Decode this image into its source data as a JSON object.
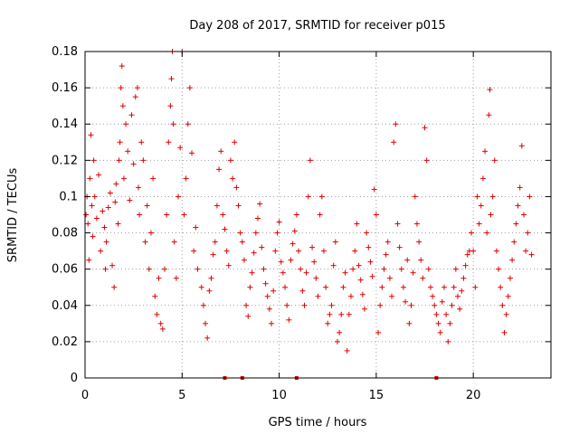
{
  "chart_data": {
    "type": "scatter",
    "title": "Day 208 of 2017, SRMTID for receiver p015",
    "xlabel": "GPS time / hours",
    "ylabel": "SRMTID / TECUs",
    "xlim": [
      0,
      24
    ],
    "ylim": [
      0,
      0.18
    ],
    "xticks": [
      0,
      5,
      10,
      15,
      20
    ],
    "xtick_labels": [
      "0",
      "5",
      "10",
      "15",
      "20"
    ],
    "yticks": [
      0,
      0.02,
      0.04,
      0.06,
      0.08,
      0.1,
      0.12,
      0.14,
      0.16,
      0.18
    ],
    "ytick_labels": [
      "0",
      "0.02",
      "0.04",
      "0.06",
      "0.08",
      "0.1",
      "0.12",
      "0.14",
      "0.16",
      "0.18"
    ],
    "grid": true,
    "marker": "+",
    "color": "#e00000",
    "series": [
      {
        "name": "SRMTID",
        "points": [
          [
            0.05,
            0.09
          ],
          [
            0.1,
            0.1
          ],
          [
            0.15,
            0.085
          ],
          [
            0.2,
            0.065
          ],
          [
            0.25,
            0.11
          ],
          [
            0.3,
            0.134
          ],
          [
            0.35,
            0.095
          ],
          [
            0.4,
            0.078
          ],
          [
            0.45,
            0.12
          ],
          [
            0.5,
            0.1
          ],
          [
            0.6,
            0.088
          ],
          [
            0.7,
            0.112
          ],
          [
            0.8,
            0.07
          ],
          [
            0.9,
            0.092
          ],
          [
            1.0,
            0.083
          ],
          [
            1.05,
            0.06
          ],
          [
            1.1,
            0.075
          ],
          [
            1.2,
            0.094
          ],
          [
            1.3,
            0.102
          ],
          [
            1.4,
            0.062
          ],
          [
            1.5,
            0.05
          ],
          [
            1.55,
            0.097
          ],
          [
            1.6,
            0.107
          ],
          [
            1.7,
            0.085
          ],
          [
            1.75,
            0.12
          ],
          [
            1.8,
            0.13
          ],
          [
            1.85,
            0.16
          ],
          [
            1.9,
            0.172
          ],
          [
            1.95,
            0.15
          ],
          [
            2.0,
            0.11
          ],
          [
            2.1,
            0.14
          ],
          [
            2.2,
            0.125
          ],
          [
            2.3,
            0.098
          ],
          [
            2.4,
            0.145
          ],
          [
            2.5,
            0.118
          ],
          [
            2.6,
            0.155
          ],
          [
            2.7,
            0.16
          ],
          [
            2.75,
            0.105
          ],
          [
            2.8,
            0.09
          ],
          [
            2.9,
            0.13
          ],
          [
            3.0,
            0.12
          ],
          [
            3.1,
            0.075
          ],
          [
            3.2,
            0.095
          ],
          [
            3.3,
            0.06
          ],
          [
            3.4,
            0.08
          ],
          [
            3.5,
            0.11
          ],
          [
            3.6,
            0.045
          ],
          [
            3.7,
            0.035
          ],
          [
            3.8,
            0.055
          ],
          [
            3.9,
            0.03
          ],
          [
            4.0,
            0.027
          ],
          [
            4.1,
            0.06
          ],
          [
            4.2,
            0.09
          ],
          [
            4.3,
            0.13
          ],
          [
            4.4,
            0.15
          ],
          [
            4.45,
            0.165
          ],
          [
            4.5,
            0.18
          ],
          [
            4.55,
            0.14
          ],
          [
            4.6,
            0.075
          ],
          [
            4.7,
            0.055
          ],
          [
            4.8,
            0.1
          ],
          [
            4.9,
            0.127
          ],
          [
            5.0,
            0.18
          ],
          [
            5.1,
            0.09
          ],
          [
            5.2,
            0.11
          ],
          [
            5.3,
            0.14
          ],
          [
            5.4,
            0.16
          ],
          [
            5.5,
            0.124
          ],
          [
            5.6,
            0.07
          ],
          [
            5.7,
            0.083
          ],
          [
            5.8,
            0.06
          ],
          [
            6.0,
            0.05
          ],
          [
            6.1,
            0.04
          ],
          [
            6.2,
            0.03
          ],
          [
            6.3,
            0.022
          ],
          [
            6.4,
            0.048
          ],
          [
            6.5,
            0.055
          ],
          [
            6.6,
            0.068
          ],
          [
            6.7,
            0.075
          ],
          [
            6.8,
            0.095
          ],
          [
            6.9,
            0.115
          ],
          [
            7.0,
            0.125
          ],
          [
            7.1,
            0.09
          ],
          [
            7.2,
            0.082
          ],
          [
            7.3,
            0.07
          ],
          [
            7.4,
            0.062
          ],
          [
            7.5,
            0.12
          ],
          [
            7.6,
            0.11
          ],
          [
            7.7,
            0.13
          ],
          [
            7.8,
            0.105
          ],
          [
            7.9,
            0.095
          ],
          [
            8.0,
            0.08
          ],
          [
            8.1,
            0.075
          ],
          [
            8.2,
            0.065
          ],
          [
            8.3,
            0.04
          ],
          [
            8.4,
            0.034
          ],
          [
            8.5,
            0.05
          ],
          [
            8.6,
            0.058
          ],
          [
            8.7,
            0.069
          ],
          [
            8.8,
            0.08
          ],
          [
            8.9,
            0.088
          ],
          [
            9.0,
            0.096
          ],
          [
            9.1,
            0.072
          ],
          [
            9.2,
            0.06
          ],
          [
            9.3,
            0.052
          ],
          [
            9.4,
            0.045
          ],
          [
            9.5,
            0.038
          ],
          [
            9.6,
            0.03
          ],
          [
            9.7,
            0.048
          ],
          [
            9.8,
            0.07
          ],
          [
            9.9,
            0.08
          ],
          [
            10.0,
            0.086
          ],
          [
            10.1,
            0.064
          ],
          [
            10.2,
            0.058
          ],
          [
            10.3,
            0.05
          ],
          [
            10.4,
            0.04
          ],
          [
            10.5,
            0.032
          ],
          [
            10.6,
            0.065
          ],
          [
            10.7,
            0.074
          ],
          [
            10.8,
            0.081
          ],
          [
            10.9,
            0.09
          ],
          [
            11.0,
            0.07
          ],
          [
            11.1,
            0.06
          ],
          [
            11.2,
            0.048
          ],
          [
            11.3,
            0.04
          ],
          [
            11.4,
            0.058
          ],
          [
            11.5,
            0.1
          ],
          [
            11.6,
            0.12
          ],
          [
            11.7,
            0.072
          ],
          [
            11.8,
            0.064
          ],
          [
            11.9,
            0.055
          ],
          [
            12.0,
            0.045
          ],
          [
            12.1,
            0.09
          ],
          [
            12.2,
            0.1
          ],
          [
            12.3,
            0.07
          ],
          [
            12.4,
            0.05
          ],
          [
            12.5,
            0.03
          ],
          [
            12.6,
            0.035
          ],
          [
            12.7,
            0.04
          ],
          [
            12.8,
            0.062
          ],
          [
            12.9,
            0.075
          ],
          [
            13.0,
            0.02
          ],
          [
            13.1,
            0.025
          ],
          [
            13.2,
            0.035
          ],
          [
            13.3,
            0.05
          ],
          [
            13.4,
            0.058
          ],
          [
            13.5,
            0.015
          ],
          [
            13.6,
            0.035
          ],
          [
            13.7,
            0.045
          ],
          [
            13.8,
            0.06
          ],
          [
            13.9,
            0.07
          ],
          [
            14.0,
            0.085
          ],
          [
            14.1,
            0.062
          ],
          [
            14.2,
            0.054
          ],
          [
            14.3,
            0.046
          ],
          [
            14.4,
            0.038
          ],
          [
            14.5,
            0.08
          ],
          [
            14.6,
            0.072
          ],
          [
            14.7,
            0.064
          ],
          [
            14.8,
            0.056
          ],
          [
            14.9,
            0.104
          ],
          [
            15.0,
            0.09
          ],
          [
            15.1,
            0.025
          ],
          [
            15.2,
            0.04
          ],
          [
            15.3,
            0.05
          ],
          [
            15.4,
            0.06
          ],
          [
            15.5,
            0.068
          ],
          [
            15.6,
            0.075
          ],
          [
            15.7,
            0.055
          ],
          [
            15.8,
            0.045
          ],
          [
            15.9,
            0.13
          ],
          [
            16.0,
            0.14
          ],
          [
            16.1,
            0.085
          ],
          [
            16.2,
            0.072
          ],
          [
            16.3,
            0.06
          ],
          [
            16.4,
            0.05
          ],
          [
            16.5,
            0.042
          ],
          [
            16.6,
            0.065
          ],
          [
            16.7,
            0.03
          ],
          [
            16.8,
            0.04
          ],
          [
            16.9,
            0.058
          ],
          [
            17.0,
            0.1
          ],
          [
            17.1,
            0.085
          ],
          [
            17.2,
            0.075
          ],
          [
            17.3,
            0.065
          ],
          [
            17.4,
            0.055
          ],
          [
            17.5,
            0.138
          ],
          [
            17.6,
            0.12
          ],
          [
            17.7,
            0.06
          ],
          [
            17.8,
            0.05
          ],
          [
            17.9,
            0.045
          ],
          [
            18.0,
            0.04
          ],
          [
            18.1,
            0.035
          ],
          [
            18.2,
            0.03
          ],
          [
            18.3,
            0.025
          ],
          [
            18.4,
            0.042
          ],
          [
            18.5,
            0.05
          ],
          [
            18.6,
            0.035
          ],
          [
            18.7,
            0.02
          ],
          [
            18.8,
            0.03
          ],
          [
            18.9,
            0.04
          ],
          [
            19.0,
            0.05
          ],
          [
            19.1,
            0.06
          ],
          [
            19.2,
            0.045
          ],
          [
            19.3,
            0.038
          ],
          [
            19.4,
            0.048
          ],
          [
            19.5,
            0.055
          ],
          [
            19.6,
            0.062
          ],
          [
            19.7,
            0.068
          ],
          [
            19.8,
            0.07
          ],
          [
            19.9,
            0.08
          ],
          [
            20.0,
            0.07
          ],
          [
            20.1,
            0.05
          ],
          [
            20.2,
            0.1
          ],
          [
            20.3,
            0.085
          ],
          [
            20.4,
            0.095
          ],
          [
            20.5,
            0.11
          ],
          [
            20.6,
            0.125
          ],
          [
            20.7,
            0.08
          ],
          [
            20.8,
            0.145
          ],
          [
            20.85,
            0.159
          ],
          [
            20.9,
            0.09
          ],
          [
            21.0,
            0.1
          ],
          [
            21.1,
            0.12
          ],
          [
            21.2,
            0.07
          ],
          [
            21.3,
            0.06
          ],
          [
            21.4,
            0.05
          ],
          [
            21.5,
            0.04
          ],
          [
            21.6,
            0.025
          ],
          [
            21.7,
            0.035
          ],
          [
            21.8,
            0.045
          ],
          [
            21.9,
            0.055
          ],
          [
            22.0,
            0.065
          ],
          [
            22.1,
            0.075
          ],
          [
            22.2,
            0.085
          ],
          [
            22.3,
            0.095
          ],
          [
            22.4,
            0.105
          ],
          [
            22.5,
            0.128
          ],
          [
            22.6,
            0.09
          ],
          [
            22.7,
            0.07
          ],
          [
            22.8,
            0.08
          ],
          [
            22.9,
            0.1
          ],
          [
            23.0,
            0.068
          ]
        ]
      }
    ],
    "markers_at_zero": [
      7.2,
      8.1,
      10.9,
      18.1
    ]
  }
}
